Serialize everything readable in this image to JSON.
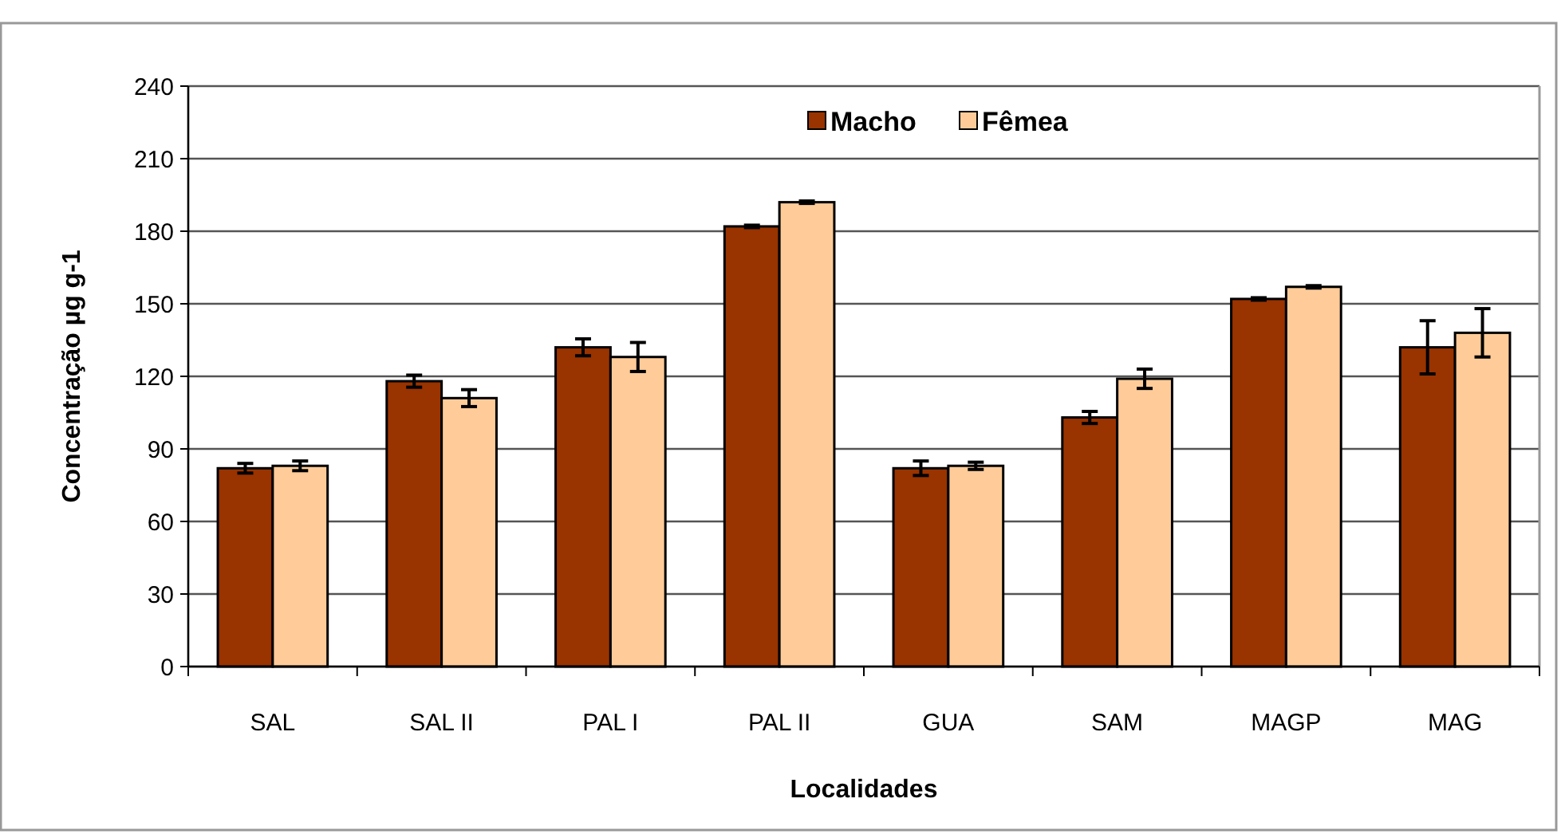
{
  "chart_data": {
    "type": "bar",
    "xlabel": "Localidades",
    "ylabel": "Concentração µg g-1",
    "categories": [
      "SAL",
      "SAL II",
      "PAL I",
      "PAL II",
      "GUA",
      "SAM",
      "MAGP",
      "MAG"
    ],
    "series": [
      {
        "name": "Macho",
        "color": "#993300",
        "values": [
          82,
          118,
          132,
          182,
          82,
          103,
          152,
          132
        ],
        "errors": [
          2,
          2.5,
          3.5,
          0.5,
          3,
          2.5,
          0.5,
          11
        ]
      },
      {
        "name": "Fêmea",
        "color": "#ffcc99",
        "values": [
          83,
          111,
          128,
          192,
          83,
          119,
          157,
          138
        ],
        "errors": [
          2,
          3.5,
          6,
          0.5,
          1.5,
          4,
          0.5,
          10
        ]
      }
    ],
    "ylim": [
      0,
      240
    ],
    "yticks": [
      0,
      30,
      60,
      90,
      120,
      150,
      180,
      210,
      240
    ],
    "grid": "y",
    "legend": "top"
  }
}
